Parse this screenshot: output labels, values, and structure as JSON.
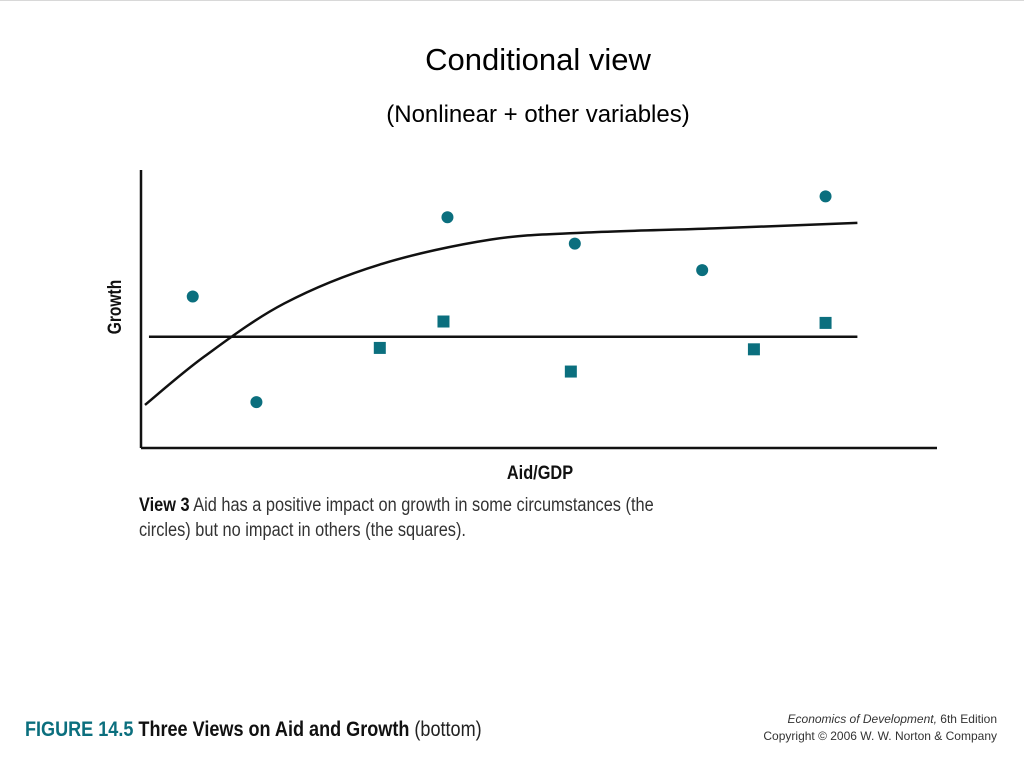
{
  "header": {
    "title": "Conditional view",
    "subtitle": "(Nonlinear + other variables)"
  },
  "chart_data": {
    "type": "scatter",
    "xlabel": "Aid/GDP",
    "ylabel": "Growth",
    "xlim": [
      0,
      100
    ],
    "ylim": [
      0,
      100
    ],
    "grid": false,
    "series": [
      {
        "name": "circles",
        "marker": "circle",
        "color": "#0b6f7e",
        "points": [
          [
            6.5,
            54.5
          ],
          [
            14.5,
            16.5
          ],
          [
            38.5,
            83
          ],
          [
            54.5,
            73.5
          ],
          [
            70.5,
            64
          ],
          [
            86,
            90.5
          ]
        ]
      },
      {
        "name": "squares",
        "marker": "square",
        "color": "#0b6f7e",
        "points": [
          [
            30,
            36
          ],
          [
            38,
            45.5
          ],
          [
            54,
            27.5
          ],
          [
            77,
            35.5
          ],
          [
            86,
            45
          ]
        ]
      }
    ],
    "lines": [
      {
        "name": "nonlinear curve",
        "points": [
          [
            0.5,
            15.5
          ],
          [
            8,
            33
          ],
          [
            18,
            52
          ],
          [
            30,
            66
          ],
          [
            44,
            75
          ],
          [
            56,
            77.5
          ],
          [
            72,
            79
          ],
          [
            90,
            81
          ]
        ]
      },
      {
        "name": "flat line",
        "points": [
          [
            1,
            40
          ],
          [
            90,
            40
          ]
        ]
      }
    ]
  },
  "caption": {
    "lead": "View 3",
    "line1": "Aid has a positive impact on growth in some circumstances (the",
    "line2": "circles) but no impact in others (the squares)."
  },
  "figure": {
    "number": "FIGURE 14.5",
    "title": "Three Views on Aid and Growth",
    "extra": "(bottom)"
  },
  "credit": {
    "book": "Economics of Development,",
    "edition": "6th Edition",
    "copyright": "Copyright © 2006 W. W. Norton & Company"
  }
}
